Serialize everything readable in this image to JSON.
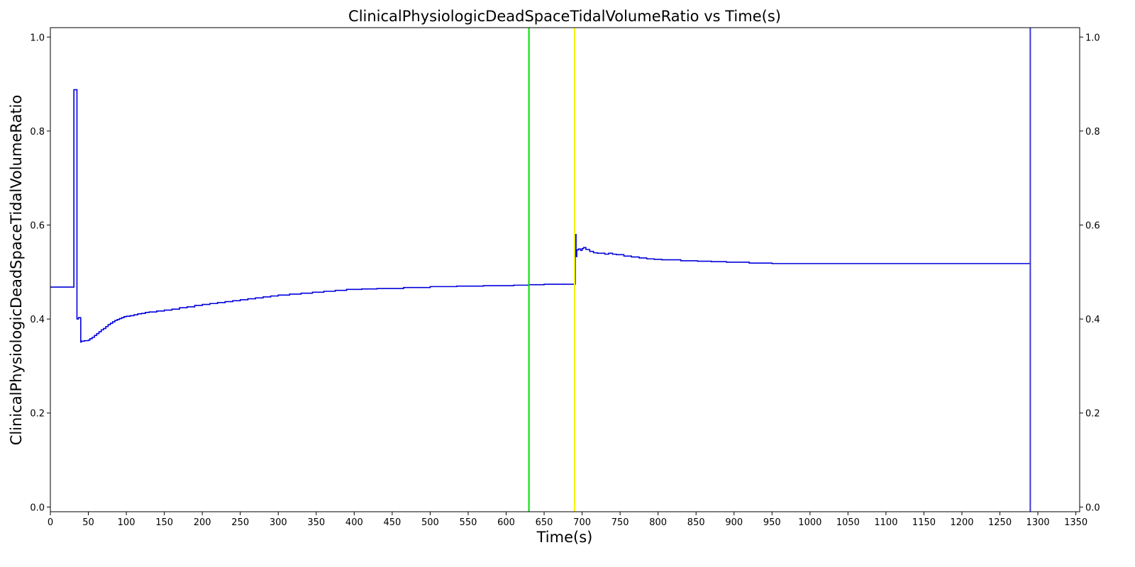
{
  "chart_data": {
    "type": "line",
    "title": "ClinicalPhysiologicDeadSpaceTidalVolumeRatio vs Time(s)",
    "xlabel": "Time(s)",
    "ylabel": "ClinicalPhysiologicDeadSpaceTidalVolumeRatio",
    "xlim": [
      0,
      1355
    ],
    "ylim": [
      -0.01,
      1.02
    ],
    "x_ticks": [
      0,
      50,
      100,
      150,
      200,
      250,
      300,
      350,
      400,
      450,
      500,
      550,
      600,
      650,
      700,
      750,
      800,
      850,
      900,
      950,
      1000,
      1050,
      1100,
      1150,
      1200,
      1250,
      1300,
      1350
    ],
    "y_ticks": [
      0.0,
      0.2,
      0.4,
      0.6,
      0.8,
      1.0
    ],
    "y_tick_labels": [
      "0.0",
      "0.2",
      "0.4",
      "0.6",
      "0.8",
      "1.0"
    ],
    "right_axis_ticks": true,
    "grid": false,
    "step": true,
    "series": [
      {
        "color": "#0000dd",
        "x": [
          0,
          30,
          31,
          34,
          35,
          37,
          40,
          41,
          45,
          50,
          52,
          55,
          58,
          61,
          64,
          67,
          70,
          73,
          76,
          79,
          82,
          85,
          88,
          91,
          94,
          97,
          100,
          105,
          110,
          115,
          120,
          125,
          130,
          140,
          150,
          160,
          170,
          180,
          190,
          200,
          210,
          220,
          230,
          240,
          250,
          260,
          270,
          280,
          290,
          300,
          315,
          330,
          345,
          360,
          375,
          390,
          410,
          430,
          465,
          500,
          535,
          570,
          610,
          630,
          650,
          670,
          690,
          691,
          692,
          693,
          695,
          698,
          700,
          702,
          705,
          710,
          715,
          720,
          725,
          730,
          735,
          740,
          745,
          755,
          765,
          775,
          785,
          795,
          805,
          815,
          830,
          852,
          870,
          890,
          920,
          950,
          1000,
          1100,
          1200,
          1290
        ],
        "y": [
          0.468,
          0.468,
          0.888,
          0.888,
          0.4,
          0.403,
          0.351,
          0.353,
          0.354,
          0.355,
          0.358,
          0.361,
          0.365,
          0.369,
          0.373,
          0.377,
          0.38,
          0.384,
          0.388,
          0.391,
          0.394,
          0.397,
          0.399,
          0.401,
          0.403,
          0.405,
          0.406,
          0.407,
          0.409,
          0.411,
          0.412,
          0.414,
          0.415,
          0.417,
          0.419,
          0.421,
          0.424,
          0.426,
          0.429,
          0.431,
          0.433,
          0.435,
          0.437,
          0.439,
          0.441,
          0.443,
          0.445,
          0.447,
          0.449,
          0.451,
          0.453,
          0.455,
          0.457,
          0.459,
          0.461,
          0.463,
          0.464,
          0.465,
          0.467,
          0.469,
          0.47,
          0.471,
          0.472,
          0.473,
          0.474,
          0.474,
          0.474,
          0.58,
          0.533,
          0.547,
          0.549,
          0.546,
          0.55,
          0.552,
          0.548,
          0.544,
          0.541,
          0.54,
          0.54,
          0.538,
          0.54,
          0.538,
          0.537,
          0.534,
          0.532,
          0.53,
          0.528,
          0.527,
          0.526,
          0.526,
          0.524,
          0.523,
          0.522,
          0.521,
          0.519,
          0.518,
          0.518,
          0.518,
          0.518,
          0.518
        ]
      }
    ],
    "vertical_lines": [
      {
        "x": 630,
        "color": "#00dd00"
      },
      {
        "x": 690,
        "color": "#f5f500"
      },
      {
        "x": 1290,
        "color": "#3a3ad6"
      }
    ]
  }
}
